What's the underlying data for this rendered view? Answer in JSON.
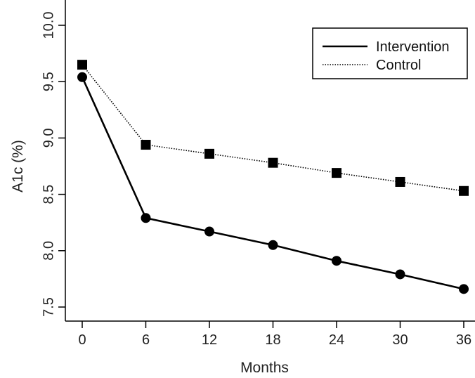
{
  "chart_data": {
    "type": "line",
    "title": "",
    "xlabel": "Months",
    "ylabel": "A1c (%)",
    "x": [
      0,
      6,
      12,
      18,
      24,
      30,
      36
    ],
    "x_ticks": [
      "0",
      "6",
      "12",
      "18",
      "24",
      "30",
      "36"
    ],
    "y_ticks": [
      "7.5",
      "8.0",
      "8.5",
      "9.0",
      "9.5",
      "10.0"
    ],
    "xlim": [
      0,
      36
    ],
    "ylim": [
      7.5,
      10.0
    ],
    "grid": false,
    "legend_position": "top-right",
    "series": [
      {
        "name": "Intervention",
        "values": [
          9.54,
          8.29,
          8.17,
          8.05,
          7.91,
          7.79,
          7.66
        ],
        "line_style": "solid",
        "marker": "circle",
        "color": "#000000"
      },
      {
        "name": "Control",
        "values": [
          9.65,
          8.94,
          8.86,
          8.78,
          8.69,
          8.61,
          8.53
        ],
        "line_style": "dotted",
        "marker": "square",
        "color": "#000000"
      }
    ]
  }
}
